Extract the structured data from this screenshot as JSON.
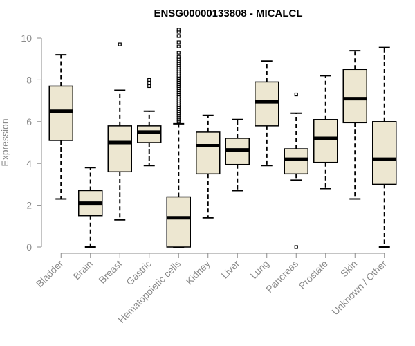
{
  "chart_data": {
    "type": "boxplot",
    "title": "ENSG00000133808 - MICALCL",
    "xlabel": "",
    "ylabel": "Expression",
    "ylim": [
      0,
      10
    ],
    "yticks": [
      0,
      2,
      4,
      6,
      8,
      10
    ],
    "categories": [
      "Bladder",
      "Brain",
      "Breast",
      "Gastric",
      "Hematopoietic cells",
      "Kidney",
      "Liver",
      "Lung",
      "Pancreas",
      "Prostate",
      "Skin",
      "Unknown / Other"
    ],
    "boxes": [
      {
        "category": "Bladder",
        "whisker_low": 2.3,
        "q1": 5.1,
        "median": 6.5,
        "q3": 7.7,
        "whisker_high": 9.2,
        "outliers": []
      },
      {
        "category": "Brain",
        "whisker_low": 0.0,
        "q1": 1.5,
        "median": 2.1,
        "q3": 2.7,
        "whisker_high": 3.8,
        "outliers": []
      },
      {
        "category": "Breast",
        "whisker_low": 1.3,
        "q1": 3.6,
        "median": 5.0,
        "q3": 5.8,
        "whisker_high": 7.5,
        "outliers": [
          9.7
        ]
      },
      {
        "category": "Gastric",
        "whisker_low": 3.9,
        "q1": 5.0,
        "median": 5.5,
        "q3": 5.8,
        "whisker_high": 6.5,
        "outliers": [
          7.7,
          7.85,
          8.0
        ]
      },
      {
        "category": "Hematopoietic cells",
        "whisker_low": 0.0,
        "q1": 0.0,
        "median": 1.4,
        "q3": 2.4,
        "whisker_high": 5.9,
        "outliers": [
          6.0,
          6.1,
          6.2,
          6.3,
          6.4,
          6.5,
          6.6,
          6.7,
          6.8,
          6.9,
          7.0,
          7.1,
          7.2,
          7.3,
          7.4,
          7.5,
          7.6,
          7.7,
          7.8,
          7.9,
          8.0,
          8.1,
          8.2,
          8.3,
          8.4,
          8.5,
          8.6,
          8.7,
          8.8,
          8.9,
          9.0,
          9.1,
          9.3,
          9.6,
          9.8,
          10.1,
          10.3,
          10.4
        ]
      },
      {
        "category": "Kidney",
        "whisker_low": 1.4,
        "q1": 3.5,
        "median": 4.85,
        "q3": 5.5,
        "whisker_high": 6.3,
        "outliers": []
      },
      {
        "category": "Liver",
        "whisker_low": 2.7,
        "q1": 3.95,
        "median": 4.65,
        "q3": 5.2,
        "whisker_high": 6.1,
        "outliers": []
      },
      {
        "category": "Lung",
        "whisker_low": 3.9,
        "q1": 5.8,
        "median": 6.95,
        "q3": 7.9,
        "whisker_high": 8.9,
        "outliers": []
      },
      {
        "category": "Pancreas",
        "whisker_low": 3.2,
        "q1": 3.5,
        "median": 4.2,
        "q3": 4.7,
        "whisker_high": 6.4,
        "outliers": [
          0.0,
          7.3
        ]
      },
      {
        "category": "Prostate",
        "whisker_low": 2.8,
        "q1": 4.05,
        "median": 5.2,
        "q3": 6.1,
        "whisker_high": 8.2,
        "outliers": []
      },
      {
        "category": "Skin",
        "whisker_low": 2.3,
        "q1": 5.95,
        "median": 7.1,
        "q3": 8.5,
        "whisker_high": 9.4,
        "outliers": []
      },
      {
        "category": "Unknown / Other",
        "whisker_low": 0.0,
        "q1": 3.0,
        "median": 4.2,
        "q3": 6.0,
        "whisker_high": 9.55,
        "outliers": []
      }
    ],
    "colors": {
      "box_fill": "#ede7d1",
      "box_stroke": "#000000",
      "median": "#000000",
      "axis": "#8a8a8a",
      "tick_label": "#8a8a8a"
    },
    "grid": false,
    "legend": "none"
  }
}
